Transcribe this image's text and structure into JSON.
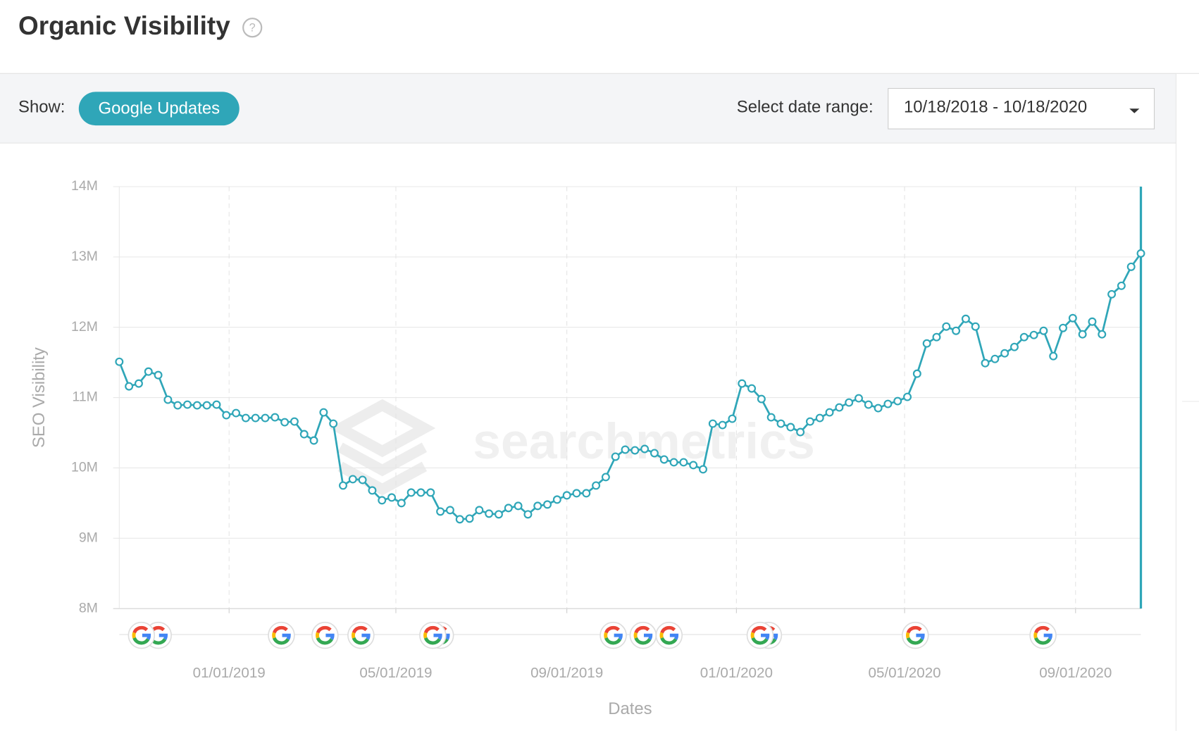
{
  "header": {
    "title": "Organic Visibility",
    "help": "?"
  },
  "toolbar": {
    "show_label": "Show:",
    "button": "Google Updates",
    "range_label": "Select date range:",
    "range_value": "10/18/2018 - 10/18/2020"
  },
  "chart_data": {
    "type": "line",
    "watermark": "searchmetrics",
    "ylabel": "SEO Visibility",
    "xlabel": "Dates",
    "color": "#2fa6b8",
    "grid": true,
    "xlim": [
      "10/14/2018",
      "10/18/2020"
    ],
    "xticks": [
      "01/01/2019",
      "05/01/2019",
      "09/01/2019",
      "01/01/2020",
      "05/01/2020",
      "09/01/2020"
    ],
    "ylim": [
      8000000,
      14000000
    ],
    "yticks": [
      {
        "value": 8000000,
        "label": "8M"
      },
      {
        "value": 9000000,
        "label": "9M"
      },
      {
        "value": 10000000,
        "label": "10M"
      },
      {
        "value": 11000000,
        "label": "11M"
      },
      {
        "value": 12000000,
        "label": "12M"
      },
      {
        "value": 13000000,
        "label": "13M"
      },
      {
        "value": 14000000,
        "label": "14M"
      }
    ],
    "x": [
      "10/14/2018",
      "10/21/2018",
      "10/28/2018",
      "11/04/2018",
      "11/11/2018",
      "11/18/2018",
      "11/25/2018",
      "12/02/2018",
      "12/09/2018",
      "12/16/2018",
      "12/23/2018",
      "12/30/2018",
      "01/06/2019",
      "01/13/2019",
      "01/20/2019",
      "01/27/2019",
      "02/03/2019",
      "02/10/2019",
      "02/17/2019",
      "02/24/2019",
      "03/03/2019",
      "03/10/2019",
      "03/17/2019",
      "03/24/2019",
      "03/31/2019",
      "04/07/2019",
      "04/14/2019",
      "04/21/2019",
      "04/28/2019",
      "05/05/2019",
      "05/12/2019",
      "05/19/2019",
      "05/26/2019",
      "06/02/2019",
      "06/09/2019",
      "06/16/2019",
      "06/23/2019",
      "06/30/2019",
      "07/07/2019",
      "07/14/2019",
      "07/21/2019",
      "07/28/2019",
      "08/04/2019",
      "08/11/2019",
      "08/18/2019",
      "08/25/2019",
      "09/01/2019",
      "09/08/2019",
      "09/15/2019",
      "09/22/2019",
      "09/29/2019",
      "10/06/2019",
      "10/13/2019",
      "10/20/2019",
      "10/27/2019",
      "11/03/2019",
      "11/10/2019",
      "11/17/2019",
      "11/24/2019",
      "12/01/2019",
      "12/08/2019",
      "12/15/2019",
      "12/22/2019",
      "12/29/2019",
      "01/05/2020",
      "01/12/2020",
      "01/19/2020",
      "01/26/2020",
      "02/02/2020",
      "02/09/2020",
      "02/16/2020",
      "02/23/2020",
      "03/01/2020",
      "03/08/2020",
      "03/15/2020",
      "03/22/2020",
      "03/29/2020",
      "04/05/2020",
      "04/12/2020",
      "04/19/2020",
      "04/26/2020",
      "05/03/2020",
      "05/10/2020",
      "05/17/2020",
      "05/24/2020",
      "05/31/2020",
      "06/07/2020",
      "06/14/2020",
      "06/21/2020",
      "06/28/2020",
      "07/05/2020",
      "07/12/2020",
      "07/19/2020",
      "07/26/2020",
      "08/02/2020",
      "08/09/2020",
      "08/16/2020",
      "08/23/2020",
      "08/30/2020",
      "09/06/2020",
      "09/13/2020",
      "09/20/2020",
      "09/27/2020",
      "10/04/2020",
      "10/11/2020",
      "10/18/2020"
    ],
    "values": [
      11510000,
      11160000,
      11200000,
      11370000,
      11320000,
      10970000,
      10890000,
      10900000,
      10890000,
      10890000,
      10900000,
      10750000,
      10780000,
      10710000,
      10710000,
      10710000,
      10720000,
      10650000,
      10660000,
      10480000,
      10390000,
      10790000,
      10630000,
      9750000,
      9840000,
      9830000,
      9680000,
      9540000,
      9580000,
      9500000,
      9650000,
      9650000,
      9650000,
      9380000,
      9400000,
      9270000,
      9280000,
      9400000,
      9350000,
      9340000,
      9430000,
      9460000,
      9340000,
      9460000,
      9480000,
      9550000,
      9610000,
      9640000,
      9640000,
      9750000,
      9870000,
      10160000,
      10260000,
      10250000,
      10270000,
      10210000,
      10120000,
      10080000,
      10080000,
      10040000,
      9980000,
      10630000,
      10610000,
      10700000,
      11200000,
      11130000,
      10980000,
      10720000,
      10630000,
      10580000,
      10510000,
      10660000,
      10710000,
      10790000,
      10860000,
      10930000,
      10990000,
      10900000,
      10850000,
      10910000,
      10950000,
      11010000,
      11340000,
      11770000,
      11860000,
      12010000,
      11950000,
      12120000,
      12010000,
      11490000,
      11550000,
      11630000,
      11720000,
      11860000,
      11890000,
      11950000,
      11590000,
      11990000,
      12130000,
      11900000,
      12080000,
      11900000,
      12470000,
      12590000,
      12860000,
      13050000
    ]
  }
}
